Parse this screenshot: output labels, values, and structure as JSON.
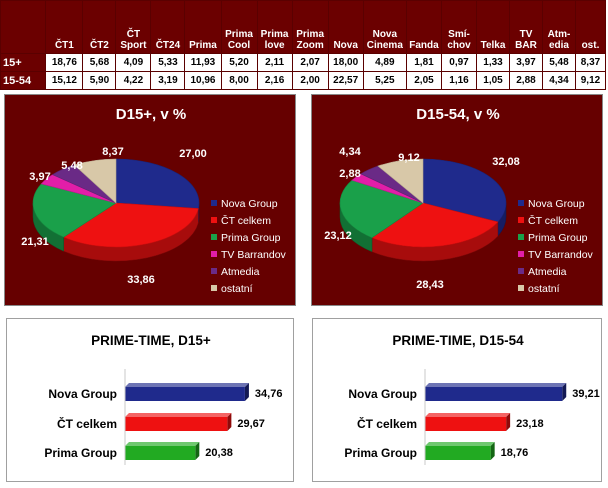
{
  "table": {
    "columns": [
      "ČT1",
      "ČT2",
      "ČT Sport",
      "ČT24",
      "Prima",
      "Prima Cool",
      "Prima love",
      "Prima Zoom",
      "Nova",
      "Nova Cinema",
      "Fanda",
      "Smí-chov",
      "Telka",
      "TV BAR",
      "Atm-edia",
      "ost."
    ],
    "rows": [
      {
        "label": "15+",
        "values": [
          "18,76",
          "5,68",
          "4,09",
          "5,33",
          "11,93",
          "5,20",
          "2,11",
          "2,07",
          "18,00",
          "4,89",
          "1,81",
          "0,97",
          "1,33",
          "3,97",
          "5,48",
          "8,37"
        ]
      },
      {
        "label": "15-54",
        "values": [
          "15,12",
          "5,90",
          "4,22",
          "3,19",
          "10,96",
          "8,00",
          "2,16",
          "2,00",
          "22,57",
          "5,25",
          "2,05",
          "1,16",
          "1,05",
          "2,88",
          "4,34",
          "9,12"
        ]
      }
    ]
  },
  "legend_labels": [
    "Nova Group",
    "ČT celkem",
    "Prima Group",
    "TV Barrandov",
    "Atmedia",
    "ostatní"
  ],
  "colors": {
    "nova": "#1f2a8c",
    "ct": "#ee1111",
    "prima": "#1aa04a",
    "barrandov": "#e21ea8",
    "atmedia": "#6a2a86",
    "ostatni": "#d8c8a8",
    "panel_bg": "#660000",
    "bar_blue": "#1f2a8c",
    "bar_red": "#ee1111",
    "bar_green": "#22aa22"
  },
  "chart_data": [
    {
      "type": "pie",
      "title": "D15+, v %",
      "categories": [
        "Nova Group",
        "ČT celkem",
        "Prima Group",
        "TV Barrandov",
        "Atmedia",
        "ostatní"
      ],
      "values": [
        27.0,
        33.86,
        21.31,
        3.97,
        5.48,
        8.37
      ],
      "labels": [
        "27,00",
        "33,86",
        "21,31",
        "3,97",
        "5,48",
        "8,37"
      ],
      "legend": "right"
    },
    {
      "type": "pie",
      "title": "D15-54, v %",
      "categories": [
        "Nova Group",
        "ČT celkem",
        "Prima Group",
        "TV Barrandov",
        "Atmedia",
        "ostatní"
      ],
      "values": [
        32.08,
        28.43,
        23.12,
        2.88,
        4.34,
        9.12
      ],
      "labels": [
        "32,08",
        "28,43",
        "23,12",
        "2,88",
        "4,34",
        "9,12"
      ],
      "legend": "right"
    },
    {
      "type": "bar",
      "title": "PRIME-TIME, D15+",
      "categories": [
        "Nova Group",
        "ČT celkem",
        "Prima Group"
      ],
      "values": [
        34.76,
        29.67,
        20.38
      ],
      "labels": [
        "34,76",
        "29,67",
        "20,38"
      ],
      "xlim": [
        0,
        40
      ]
    },
    {
      "type": "bar",
      "title": "PRIME-TIME, D15-54",
      "categories": [
        "Nova Group",
        "ČT celkem",
        "Prima Group"
      ],
      "values": [
        39.21,
        23.18,
        18.76
      ],
      "labels": [
        "39,21",
        "23,18",
        "18,76"
      ],
      "xlim": [
        0,
        40
      ]
    }
  ]
}
